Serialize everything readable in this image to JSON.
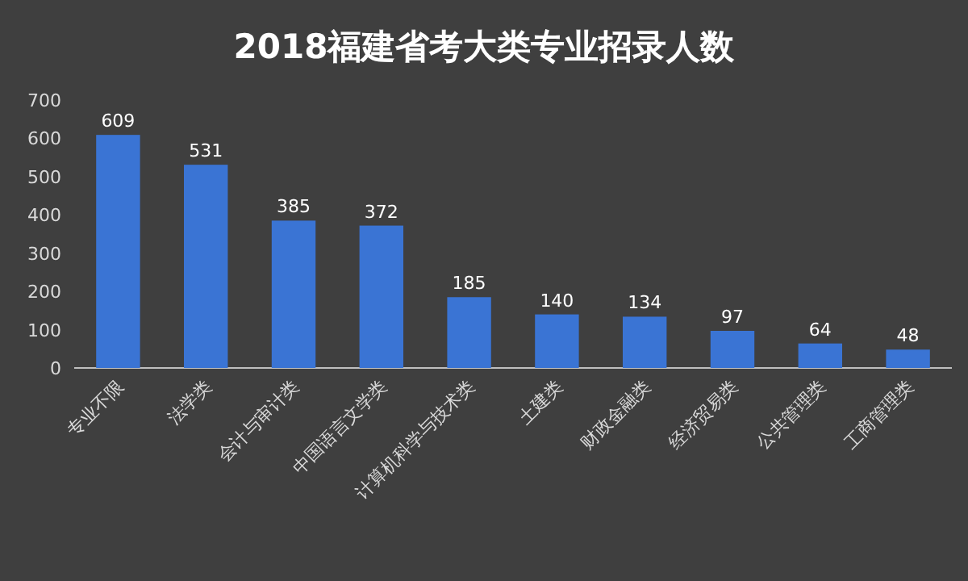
{
  "chart_data": {
    "type": "bar",
    "title": "2018福建省考大类专业招录人数",
    "categories": [
      "专业不限",
      "法学类",
      "会计与审计类",
      "中国语言文学类",
      "计算机科学与技术类",
      "土建类",
      "财政金融类",
      "经济贸易类",
      "公共管理类",
      "工商管理类"
    ],
    "values": [
      609,
      531,
      385,
      372,
      185,
      140,
      134,
      97,
      64,
      48
    ],
    "color": "#3a74d4",
    "ylim": [
      0,
      700
    ],
    "yticks": [
      0,
      100,
      200,
      300,
      400,
      500,
      600,
      700
    ],
    "grid": false,
    "data_labels": true
  }
}
